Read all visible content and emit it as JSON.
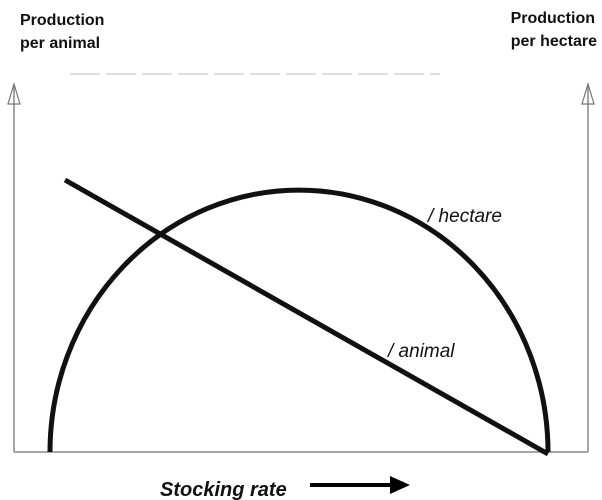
{
  "left_axis_label": [
    "Production",
    "per animal"
  ],
  "right_axis_label": [
    "Production",
    "per hectare"
  ],
  "curves": {
    "hectare": "/ hectare",
    "animal": "/ animal"
  },
  "x_axis_label": "Stocking rate"
}
